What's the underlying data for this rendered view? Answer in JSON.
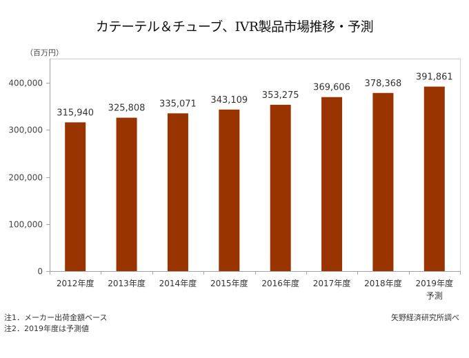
{
  "chart_data": {
    "type": "bar",
    "title": "カテーテル＆チューブ、IVR製品市場推移・予測",
    "ylabel": "（百万円）",
    "xlabel": "",
    "categories": [
      "2012年度",
      "2013年度",
      "2014年度",
      "2015年度",
      "2016年度",
      "2017年度",
      "2018年度",
      "2019年度"
    ],
    "category_sublabels": [
      "",
      "",
      "",
      "",
      "",
      "",
      "",
      "予測"
    ],
    "values": [
      315940,
      325808,
      335071,
      343109,
      353275,
      369606,
      378368,
      391861
    ],
    "value_labels": [
      "315,940",
      "325,808",
      "335,071",
      "343,109",
      "353,275",
      "369,606",
      "378,368",
      "391,861"
    ],
    "ylim": [
      0,
      450000
    ],
    "yticks": [
      0,
      100000,
      200000,
      300000,
      400000
    ],
    "ytick_labels": [
      "0",
      "100,000",
      "200,000",
      "300,000",
      "400,000"
    ],
    "bar_color": "#993300",
    "grid": false,
    "legend": "none"
  },
  "notes": [
    "注1．メーカー出荷金額ベース",
    "注2．2019年度は予測値"
  ],
  "source": "矢野経済研究所調べ"
}
